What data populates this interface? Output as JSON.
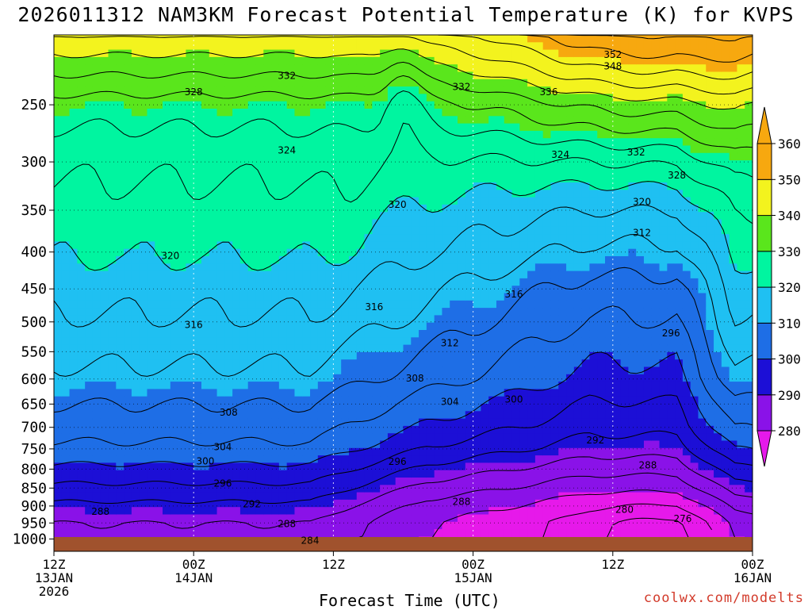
{
  "title": "2026011312 NAM3KM Forecast Potential Temperature (K) for KVPS",
  "credit": "coolwx.com/modelts",
  "chart_data": {
    "type": "contour",
    "title": "2026011312 NAM3KM Forecast Potential Temperature (K) for KVPS",
    "xlabel": "Forecast Time (UTC)",
    "ylabel": "",
    "y_axis": {
      "scale": "log",
      "inverted": true,
      "range": [
        1040,
        200
      ],
      "ticks": [
        1000,
        950,
        900,
        850,
        800,
        750,
        700,
        650,
        600,
        550,
        500,
        450,
        400,
        350,
        300,
        250
      ]
    },
    "x_axis": {
      "range_hours": [
        0,
        60
      ],
      "ticks": [
        {
          "hour": 0,
          "lines": [
            "12Z",
            "13JAN",
            "2026"
          ]
        },
        {
          "hour": 12,
          "lines": [
            "00Z",
            "14JAN"
          ]
        },
        {
          "hour": 24,
          "lines": [
            "12Z"
          ]
        },
        {
          "hour": 36,
          "lines": [
            "00Z",
            "15JAN"
          ]
        },
        {
          "hour": 48,
          "lines": [
            "12Z"
          ]
        },
        {
          "hour": 60,
          "lines": [
            "00Z",
            "16JAN"
          ]
        }
      ]
    },
    "grid": true,
    "colorbar": {
      "levels": [
        280,
        290,
        300,
        310,
        320,
        330,
        340,
        350,
        360
      ],
      "colors": [
        "#e619ea",
        "#8a12e8",
        "#1c0fd6",
        "#1e6ee6",
        "#1fc0f2",
        "#00f5a0",
        "#5ae61c",
        "#f3f31e",
        "#f7a80f"
      ],
      "placement": "right"
    },
    "contour_interval": 4,
    "contour_labels": [
      {
        "value": 352,
        "hour": 48.0,
        "p": 213
      },
      {
        "value": 348,
        "hour": 48.0,
        "p": 221
      },
      {
        "value": 332,
        "hour": 20.0,
        "p": 228
      },
      {
        "value": 328,
        "hour": 12.0,
        "p": 240
      },
      {
        "value": 332,
        "hour": 35.0,
        "p": 236
      },
      {
        "value": 336,
        "hour": 42.5,
        "p": 240
      },
      {
        "value": 324,
        "hour": 20.0,
        "p": 289
      },
      {
        "value": 324,
        "hour": 43.5,
        "p": 293
      },
      {
        "value": 332,
        "hour": 50.0,
        "p": 291
      },
      {
        "value": 328,
        "hour": 53.5,
        "p": 313
      },
      {
        "value": 320,
        "hour": 29.5,
        "p": 344
      },
      {
        "value": 320,
        "hour": 50.5,
        "p": 341
      },
      {
        "value": 312,
        "hour": 50.5,
        "p": 376
      },
      {
        "value": 320,
        "hour": 10.0,
        "p": 405
      },
      {
        "value": 316,
        "hour": 27.5,
        "p": 477
      },
      {
        "value": 316,
        "hour": 39.5,
        "p": 458
      },
      {
        "value": 316,
        "hour": 12.0,
        "p": 505
      },
      {
        "value": 296,
        "hour": 53.0,
        "p": 518
      },
      {
        "value": 312,
        "hour": 34.0,
        "p": 535
      },
      {
        "value": 308,
        "hour": 31.0,
        "p": 599
      },
      {
        "value": 304,
        "hour": 34.0,
        "p": 645
      },
      {
        "value": 300,
        "hour": 39.5,
        "p": 640
      },
      {
        "value": 308,
        "hour": 15.0,
        "p": 668
      },
      {
        "value": 304,
        "hour": 14.5,
        "p": 745
      },
      {
        "value": 292,
        "hour": 46.5,
        "p": 730
      },
      {
        "value": 300,
        "hour": 13.0,
        "p": 780
      },
      {
        "value": 296,
        "hour": 29.5,
        "p": 781
      },
      {
        "value": 288,
        "hour": 51.0,
        "p": 790
      },
      {
        "value": 296,
        "hour": 14.5,
        "p": 837
      },
      {
        "value": 292,
        "hour": 17.0,
        "p": 895
      },
      {
        "value": 288,
        "hour": 35.0,
        "p": 888
      },
      {
        "value": 288,
        "hour": 4.0,
        "p": 916
      },
      {
        "value": 288,
        "hour": 20.0,
        "p": 953
      },
      {
        "value": 280,
        "hour": 49.0,
        "p": 910
      },
      {
        "value": 276,
        "hour": 54.0,
        "p": 938
      },
      {
        "value": 284,
        "hour": 22.0,
        "p": 1005
      }
    ]
  }
}
